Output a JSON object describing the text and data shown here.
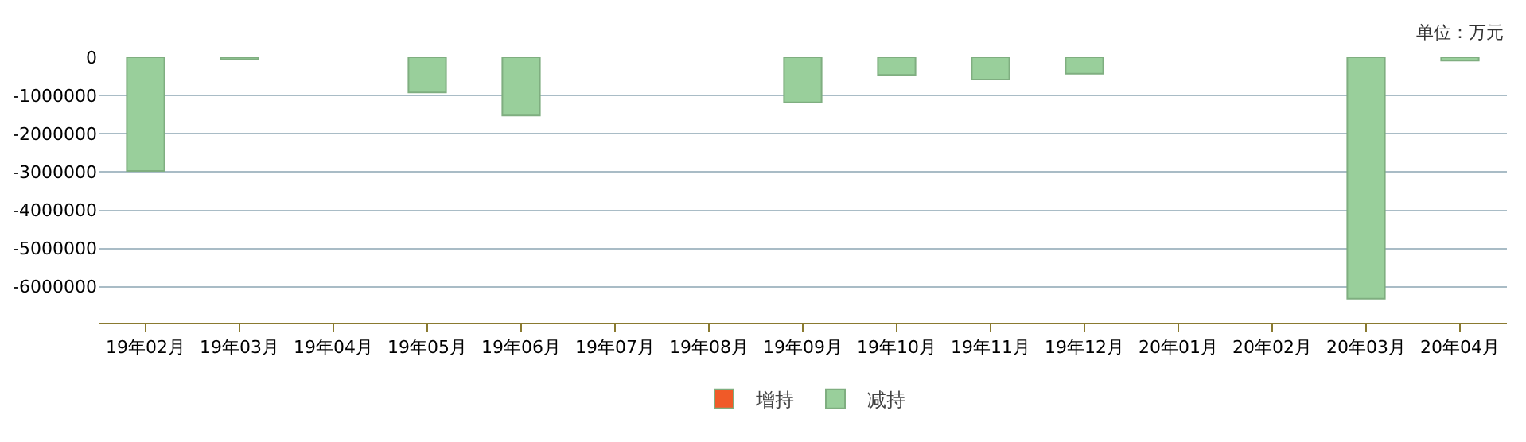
{
  "chart_data": {
    "type": "bar",
    "categories": [
      "19年02月",
      "19年03月",
      "19年04月",
      "19年05月",
      "19年06月",
      "19年07月",
      "19年08月",
      "19年09月",
      "19年10月",
      "19年11月",
      "19年12月",
      "20年01月",
      "20年02月",
      "20年03月",
      "20年04月"
    ],
    "series": [
      {
        "name": "增持",
        "color": "#f05a28",
        "values": [
          null,
          null,
          null,
          null,
          null,
          null,
          null,
          null,
          null,
          null,
          null,
          null,
          null,
          null,
          null
        ]
      },
      {
        "name": "减持",
        "color": "#99cf9b",
        "values": [
          -2970000,
          -50000,
          null,
          -920000,
          -1520000,
          null,
          null,
          -1180000,
          -460000,
          -580000,
          -430000,
          null,
          null,
          -6310000,
          -90000
        ]
      }
    ],
    "ylim": [
      -6940000,
      0
    ],
    "yticks": [
      0,
      -1000000,
      -2000000,
      -3000000,
      -4000000,
      -5000000,
      -6000000
    ],
    "grid": "y",
    "legend": "bottom",
    "annotations": [
      "单位：万元"
    ]
  }
}
